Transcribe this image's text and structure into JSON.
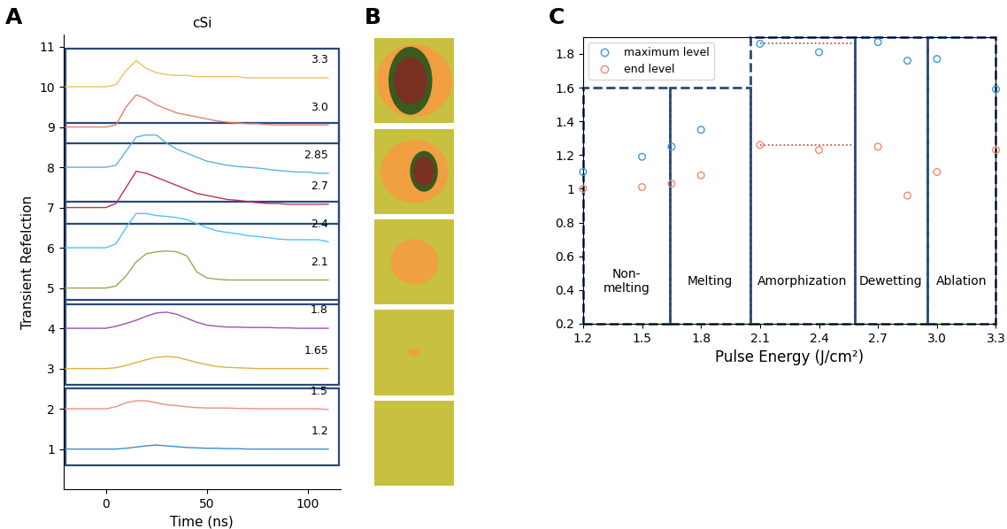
{
  "chart_data": [
    {
      "type": "line",
      "panel": "A",
      "title": "cSi",
      "x_label": "Time (ns)",
      "y_label": "Transient Refelction",
      "x": [
        -20,
        -15,
        -10,
        -5,
        0,
        5,
        10,
        15,
        20,
        25,
        30,
        35,
        40,
        45,
        50,
        55,
        60,
        65,
        70,
        75,
        80,
        85,
        90,
        95,
        100,
        105,
        110
      ],
      "xlim": [
        -21,
        116
      ],
      "xticks": [
        0,
        50,
        100
      ],
      "ylim": [
        0,
        11.3
      ],
      "yticks": [
        1,
        2,
        3,
        4,
        5,
        6,
        7,
        8,
        9,
        10,
        11
      ],
      "series": [
        {
          "name": "1.2",
          "color": "#3a8fd0",
          "values": [
            1,
            1,
            1,
            1,
            1,
            1,
            1.02,
            1.05,
            1.08,
            1.1,
            1.08,
            1.06,
            1.04,
            1.03,
            1.02,
            1.02,
            1.01,
            1.01,
            1,
            1,
            1,
            1,
            1,
            1,
            1,
            1,
            1
          ]
        },
        {
          "name": "1.5",
          "color": "#e89080",
          "values": [
            2,
            2,
            2,
            2,
            2,
            2.05,
            2.15,
            2.2,
            2.2,
            2.15,
            2.1,
            2.08,
            2.05,
            2.03,
            2.02,
            2.02,
            2.02,
            2.01,
            2.01,
            2,
            2,
            2,
            2,
            2,
            2,
            2,
            1.98
          ]
        },
        {
          "name": "1.65",
          "color": "#e0b040",
          "values": [
            3,
            3,
            3,
            3,
            3,
            3.02,
            3.08,
            3.15,
            3.22,
            3.28,
            3.3,
            3.28,
            3.22,
            3.15,
            3.1,
            3.05,
            3.03,
            3.02,
            3.01,
            3,
            3,
            3,
            3,
            3,
            3,
            3,
            3
          ]
        },
        {
          "name": "1.8",
          "color": "#a050b0",
          "values": [
            4,
            4,
            4,
            4,
            4,
            4.05,
            4.12,
            4.2,
            4.3,
            4.38,
            4.4,
            4.35,
            4.25,
            4.15,
            4.08,
            4.05,
            4.03,
            4.03,
            4.02,
            4.02,
            4.02,
            4.01,
            4.01,
            4,
            4,
            4,
            4
          ]
        },
        {
          "name": "2.1",
          "color": "#8db04a",
          "values": [
            5,
            5,
            5,
            5,
            5,
            5.05,
            5.3,
            5.65,
            5.85,
            5.9,
            5.92,
            5.9,
            5.8,
            5.4,
            5.25,
            5.22,
            5.2,
            5.2,
            5.2,
            5.2,
            5.2,
            5.2,
            5.2,
            5.2,
            5.2,
            5.2,
            5.2
          ]
        },
        {
          "name": "2.4",
          "color": "#4fc3f7",
          "values": [
            6,
            6,
            6,
            6,
            6,
            6.1,
            6.5,
            6.85,
            6.85,
            6.8,
            6.78,
            6.75,
            6.7,
            6.6,
            6.5,
            6.42,
            6.38,
            6.35,
            6.3,
            6.28,
            6.25,
            6.22,
            6.2,
            6.2,
            6.2,
            6.2,
            6.15
          ]
        },
        {
          "name": "2.7",
          "color": "#c0305a",
          "values": [
            7,
            7,
            7,
            7,
            7,
            7.1,
            7.5,
            7.9,
            7.85,
            7.75,
            7.65,
            7.55,
            7.45,
            7.35,
            7.3,
            7.25,
            7.2,
            7.18,
            7.15,
            7.12,
            7.1,
            7.1,
            7.08,
            7.08,
            7.08,
            7.08,
            7.08
          ]
        },
        {
          "name": "2.85",
          "color": "#5ab4e0",
          "values": [
            8,
            8,
            8,
            8,
            8,
            8.05,
            8.4,
            8.75,
            8.8,
            8.8,
            8.6,
            8.45,
            8.35,
            8.25,
            8.15,
            8.1,
            8.05,
            8.02,
            8,
            7.98,
            7.95,
            7.92,
            7.9,
            7.88,
            7.88,
            7.85,
            7.85
          ]
        },
        {
          "name": "3.0",
          "color": "#e8806a",
          "values": [
            9,
            9,
            9,
            9,
            9,
            9.05,
            9.5,
            9.8,
            9.7,
            9.55,
            9.45,
            9.35,
            9.3,
            9.25,
            9.2,
            9.15,
            9.12,
            9.1,
            9.08,
            9.08,
            9.06,
            9.05,
            9.05,
            9.05,
            9.05,
            9.05,
            9.05
          ]
        },
        {
          "name": "3.3",
          "color": "#f0c060",
          "values": [
            10,
            10,
            10,
            10,
            10,
            10.05,
            10.4,
            10.65,
            10.45,
            10.35,
            10.3,
            10.28,
            10.28,
            10.25,
            10.25,
            10.25,
            10.25,
            10.25,
            10.22,
            10.22,
            10.22,
            10.22,
            10.22,
            10.22,
            10.22,
            10.22,
            10.22
          ]
        }
      ]
    },
    {
      "type": "image",
      "panel": "B"
    },
    {
      "type": "scatter",
      "panel": "C",
      "x_label": "Pulse Energy (J/cm²)",
      "x": [
        1.2,
        1.5,
        1.65,
        1.8,
        2.1,
        2.4,
        2.7,
        2.85,
        3.0,
        3.3
      ],
      "xlim": [
        1.2,
        3.3
      ],
      "xticks": [
        1.2,
        1.5,
        1.8,
        2.1,
        2.4,
        2.7,
        3.0,
        3.3
      ],
      "ylim": [
        0.2,
        1.9
      ],
      "yticks": [
        0.2,
        0.4,
        0.6,
        0.8,
        1,
        1.2,
        1.4,
        1.6,
        1.8
      ],
      "legend": "upper left",
      "series": [
        {
          "name": "maximum level",
          "color": "#3a9ad9",
          "marker": "o",
          "values": [
            1.1,
            1.19,
            1.25,
            1.35,
            1.86,
            1.81,
            1.87,
            1.76,
            1.77,
            1.59
          ]
        },
        {
          "name": "end level",
          "color": "#f08a6a",
          "marker": "o",
          "values": [
            1.0,
            1.01,
            1.03,
            1.08,
            1.26,
            1.23,
            1.25,
            0.96,
            1.1,
            1.23
          ]
        }
      ],
      "regions": [
        {
          "label": "Non-\nmelting",
          "x": [
            1.2,
            1.64
          ],
          "top": 1.6
        },
        {
          "label": "Melting",
          "x": [
            1.64,
            2.05
          ],
          "top": 1.6
        },
        {
          "label": "Amorphization",
          "x": [
            2.05,
            2.58
          ],
          "top": 1.9
        },
        {
          "label": "Dewetting",
          "x": [
            2.58,
            2.95
          ],
          "top": 1.9
        },
        {
          "label": "Ablation",
          "x": [
            2.95,
            3.3
          ],
          "top": 1.9
        }
      ],
      "guide_lines": [
        {
          "x": [
            2.1,
            2.57
          ],
          "y": 1.86,
          "color": "#e03030"
        },
        {
          "x": [
            2.1,
            2.57
          ],
          "y": 1.26,
          "color": "#e03030"
        }
      ]
    }
  ]
}
